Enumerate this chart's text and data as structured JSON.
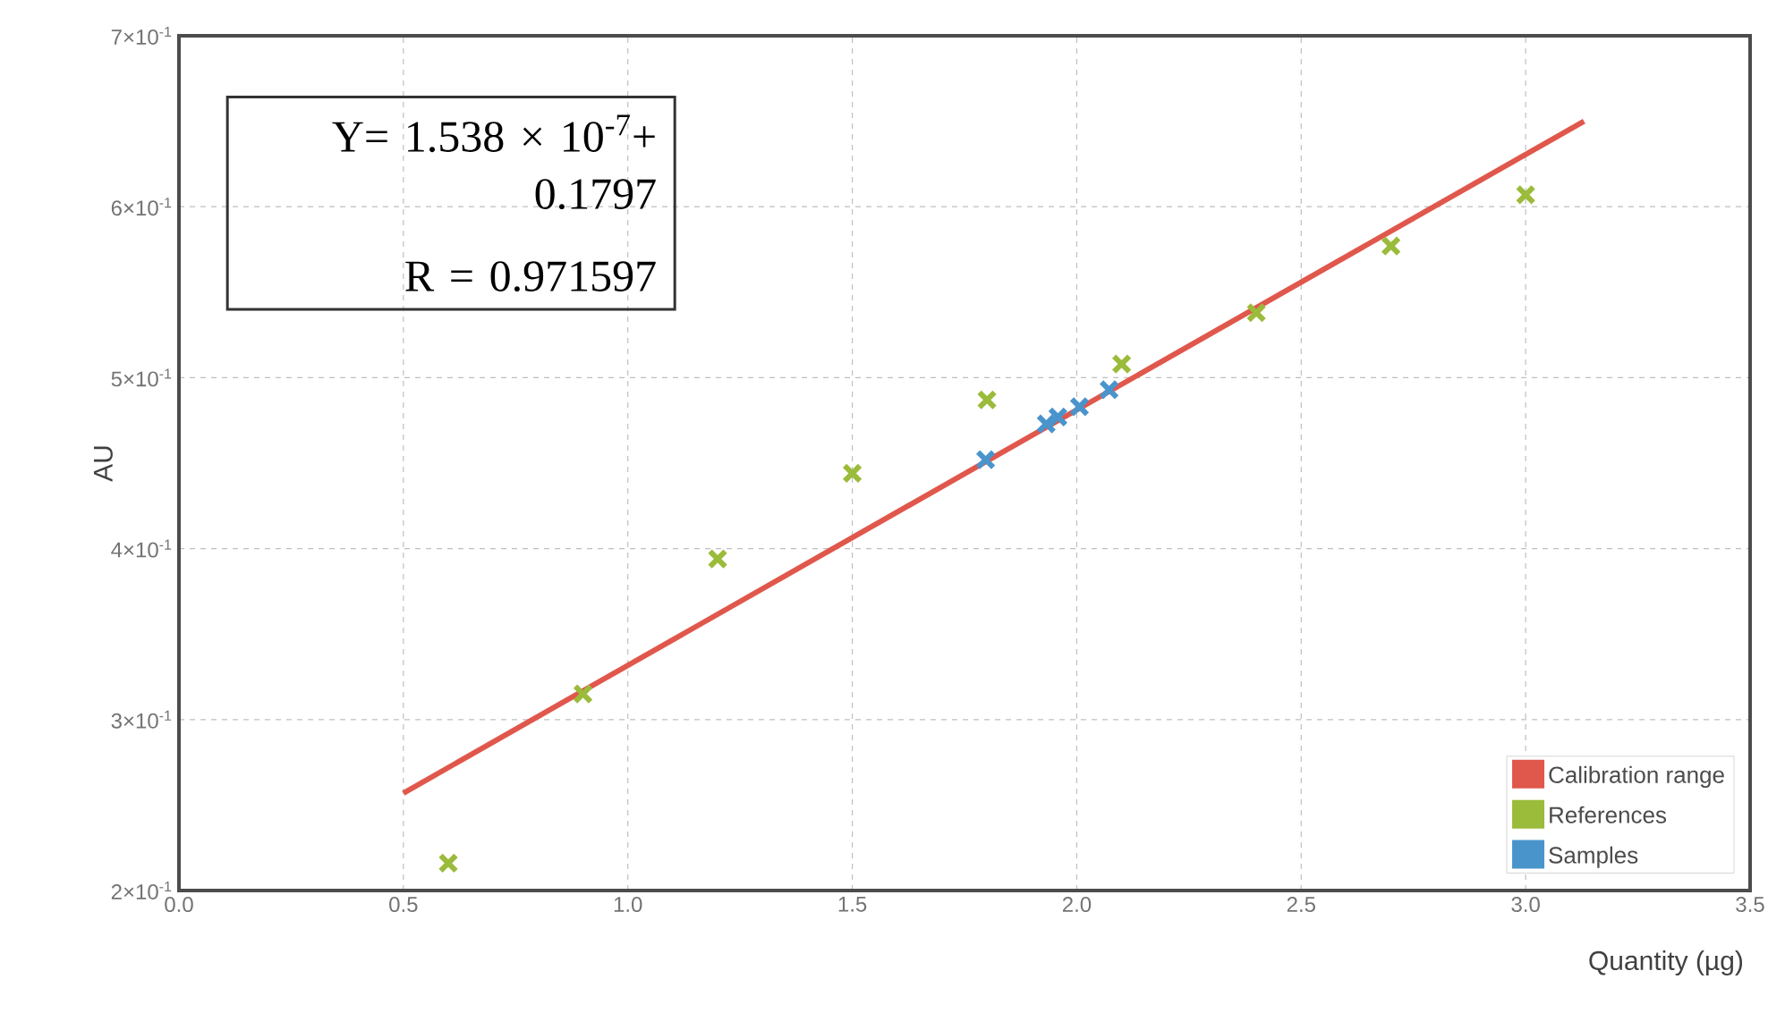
{
  "chart_data": {
    "type": "scatter",
    "xlabel": "Quantity (µg)",
    "ylabel": "AU",
    "annotations": [
      "Y= 1.538 × 10$^{-7}$+ 0.1797",
      "R = 0.971597"
    ],
    "xlim": [
      0,
      3.5
    ],
    "ylim": [
      0.2,
      0.7
    ],
    "xticks": [
      {
        "value": 0,
        "label": "0.0"
      },
      {
        "value": 0.5,
        "label": "0.5"
      },
      {
        "value": 1,
        "label": "1.0"
      },
      {
        "value": 1.5,
        "label": "1.5"
      },
      {
        "value": 2,
        "label": "2.0"
      },
      {
        "value": 2.5,
        "label": "2.5"
      },
      {
        "value": 3,
        "label": "3.0"
      },
      {
        "value": 3.5,
        "label": "3.5"
      }
    ],
    "yticks": [
      {
        "value": 0.2,
        "label": "2×10$^{-1}$"
      },
      {
        "value": 0.3,
        "label": "3×10$^{-1}$"
      },
      {
        "value": 0.4,
        "label": "4×10$^{-1}$"
      },
      {
        "value": 0.5,
        "label": "5×10$^{-1}$"
      },
      {
        "value": 0.6,
        "label": "6×10$^{-1}$"
      },
      {
        "value": 0.7,
        "label": "7×10$^{-1}$"
      }
    ],
    "grid": true,
    "legend": "bottom right",
    "marker": "cross",
    "series": [
      {
        "name": "Calibration range",
        "type": "line",
        "marker": "none",
        "line_style": "solid",
        "color": "#e0574c",
        "x": [
          0.5,
          3.13
        ],
        "values": [
          0.257,
          0.65
        ]
      },
      {
        "name": "References",
        "color": "#9bbb3a",
        "x": [
          0.6,
          0.9,
          1.2,
          1.5,
          1.8,
          2.1,
          2.4,
          2.7,
          3.0
        ],
        "values": [
          0.216,
          0.315,
          0.394,
          0.444,
          0.487,
          0.508,
          0.538,
          0.577,
          0.607
        ]
      },
      {
        "name": "Samples",
        "color": "#4a94cc",
        "x": [
          1.797,
          1.932,
          1.958,
          2.006,
          2.072
        ],
        "values": [
          0.452,
          0.473,
          0.477,
          0.483,
          0.493
        ]
      }
    ]
  }
}
